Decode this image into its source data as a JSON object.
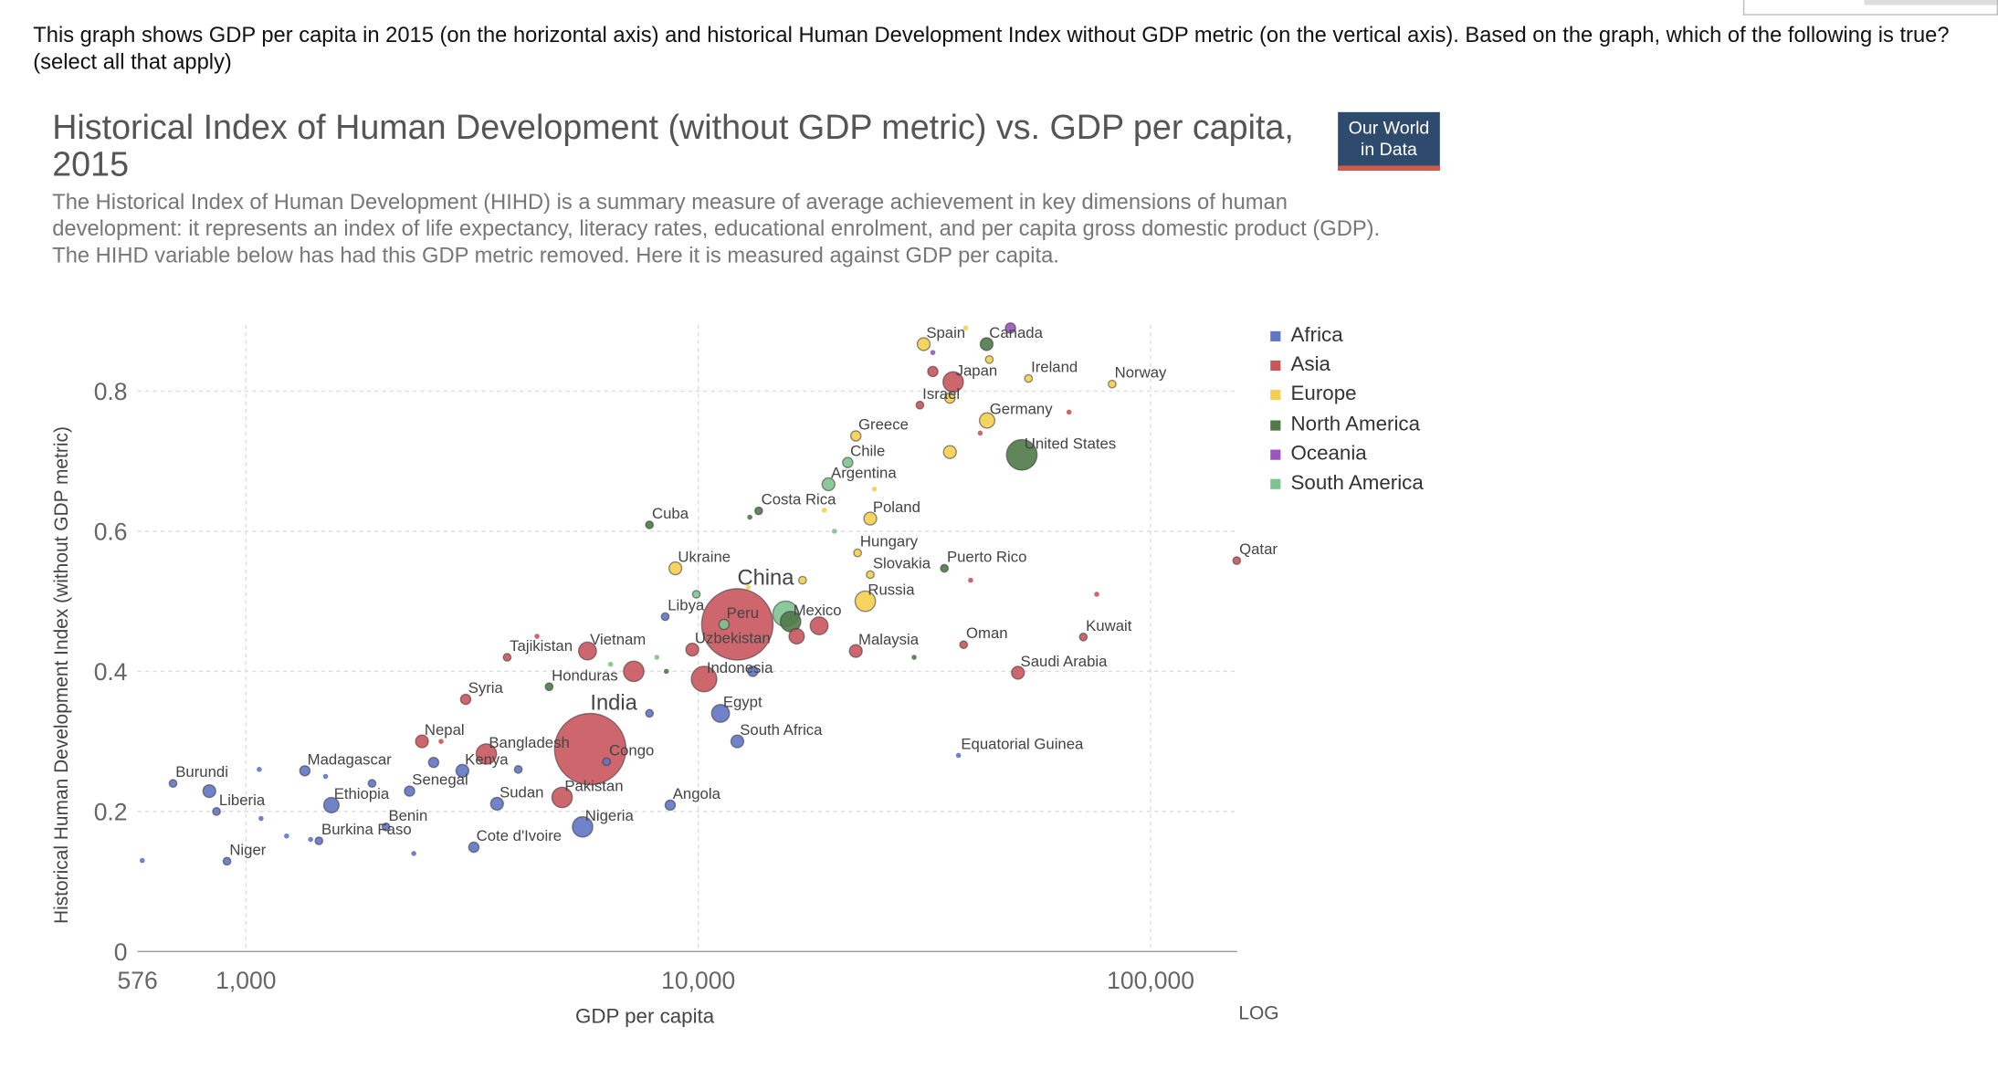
{
  "question": "This graph shows GDP per capita in 2015 (on the horizontal axis) and historical Human Development Index without GDP metric (on the vertical axis). Based on the graph, which of the following is true? (select all that apply)",
  "logo": {
    "line1": "Our World",
    "line2": "in Data"
  },
  "chart_data": {
    "type": "scatter",
    "title": "Historical Index of Human Development (without GDP metric) vs. GDP per capita, 2015",
    "subtitle": "The Historical Index of Human Development (HIHD) is a summary measure of average achievement in key dimensions of human development: it represents an index of life expectancy, literacy rates, educational enrolment, and per capita gross domestic product (GDP). The HIHD variable below has had this GDP metric removed. Here it is measured against GDP per capita.",
    "xlabel": "GDP per capita",
    "ylabel": "Historical Human Development Index (without GDP metric)",
    "x_scale": "log",
    "x_scale_label": "LOG",
    "xlim": [
      576,
      155000
    ],
    "ylim": [
      0,
      0.89
    ],
    "x_ticks": [
      {
        "value": 576,
        "label": "576"
      },
      {
        "value": 1000,
        "label": "1,000"
      },
      {
        "value": 10000,
        "label": "10,000"
      },
      {
        "value": 100000,
        "label": "100,000"
      }
    ],
    "y_ticks": [
      {
        "value": 0,
        "label": "0"
      },
      {
        "value": 0.2,
        "label": "0.2"
      },
      {
        "value": 0.4,
        "label": "0.4"
      },
      {
        "value": 0.6,
        "label": "0.6"
      },
      {
        "value": 0.8,
        "label": "0.8"
      }
    ],
    "grid": true,
    "legend_position": "right",
    "series": [
      {
        "name": "Africa",
        "color": "#6076c4"
      },
      {
        "name": "Asia",
        "color": "#c9565d"
      },
      {
        "name": "Europe",
        "color": "#f4cf4f"
      },
      {
        "name": "North America",
        "color": "#4f7a47"
      },
      {
        "name": "Oceania",
        "color": "#9a55bf"
      },
      {
        "name": "South America",
        "color": "#7dc48f"
      }
    ],
    "points": [
      {
        "label": "United States",
        "region": "North America",
        "gdp": 51900,
        "hihd": 0.709,
        "size": 12
      },
      {
        "label": "China",
        "region": "Asia",
        "gdp": 12200,
        "hihd": 0.467,
        "size": 28,
        "big_label": true
      },
      {
        "label": "India",
        "region": "Asia",
        "gdp": 5770,
        "hihd": 0.289,
        "size": 28,
        "big_label": true
      },
      {
        "label": "",
        "region": "South America",
        "gdp": 15600,
        "hihd": 0.482,
        "size": 10
      },
      {
        "label": "Spain",
        "region": "Europe",
        "gdp": 31500,
        "hihd": 0.867,
        "size": 5
      },
      {
        "label": "Canada",
        "region": "North America",
        "gdp": 43400,
        "hihd": 0.867,
        "size": 5
      },
      {
        "label": "Japan",
        "region": "Asia",
        "gdp": 36600,
        "hihd": 0.813,
        "size": 8
      },
      {
        "label": "Ireland",
        "region": "Europe",
        "gdp": 53700,
        "hihd": 0.818,
        "size": 3
      },
      {
        "label": "Norway",
        "region": "Europe",
        "gdp": 82200,
        "hihd": 0.81,
        "size": 3
      },
      {
        "label": "Israel",
        "region": "Asia",
        "gdp": 30900,
        "hihd": 0.78,
        "size": 3
      },
      {
        "label": "Germany",
        "region": "Europe",
        "gdp": 43500,
        "hihd": 0.758,
        "size": 6
      },
      {
        "label": "Greece",
        "region": "Europe",
        "gdp": 22300,
        "hihd": 0.736,
        "size": 4
      },
      {
        "label": "Chile",
        "region": "South America",
        "gdp": 21400,
        "hihd": 0.698,
        "size": 4
      },
      {
        "label": "Argentina",
        "region": "South America",
        "gdp": 19400,
        "hihd": 0.667,
        "size": 5
      },
      {
        "label": "Costa Rica",
        "region": "North America",
        "gdp": 13600,
        "hihd": 0.629,
        "size": 3
      },
      {
        "label": "Poland",
        "region": "Europe",
        "gdp": 24000,
        "hihd": 0.618,
        "size": 5
      },
      {
        "label": "Cuba",
        "region": "North America",
        "gdp": 7800,
        "hihd": 0.609,
        "size": 3
      },
      {
        "label": "Ukraine",
        "region": "Europe",
        "gdp": 8900,
        "hihd": 0.547,
        "size": 5
      },
      {
        "label": "Hungary",
        "region": "Europe",
        "gdp": 22500,
        "hihd": 0.569,
        "size": 3
      },
      {
        "label": "Slovakia",
        "region": "Europe",
        "gdp": 24000,
        "hihd": 0.538,
        "size": 3
      },
      {
        "label": "Puerto Rico",
        "region": "North America",
        "gdp": 35000,
        "hihd": 0.547,
        "size": 3
      },
      {
        "label": "Russia",
        "region": "Europe",
        "gdp": 23400,
        "hihd": 0.5,
        "size": 8
      },
      {
        "label": "Qatar",
        "region": "Asia",
        "gdp": 155000,
        "hihd": 0.558,
        "size": 3
      },
      {
        "label": "Peru",
        "region": "South America",
        "gdp": 11400,
        "hihd": 0.467,
        "size": 4
      },
      {
        "label": "Mexico",
        "region": "North America",
        "gdp": 16000,
        "hihd": 0.471,
        "size": 8
      },
      {
        "label": "Libya",
        "region": "Africa",
        "gdp": 8450,
        "hihd": 0.478,
        "size": 3
      },
      {
        "label": "Kuwait",
        "region": "Asia",
        "gdp": 71000,
        "hihd": 0.449,
        "size": 3
      },
      {
        "label": "Oman",
        "region": "Asia",
        "gdp": 38600,
        "hihd": 0.438,
        "size": 3
      },
      {
        "label": "Malaysia",
        "region": "Asia",
        "gdp": 22300,
        "hihd": 0.429,
        "size": 5
      },
      {
        "label": "Saudi Arabia",
        "region": "Asia",
        "gdp": 50900,
        "hihd": 0.398,
        "size": 5
      },
      {
        "label": "Uzbekistan",
        "region": "Asia",
        "gdp": 9700,
        "hihd": 0.431,
        "size": 5
      },
      {
        "label": "Indonesia",
        "region": "Asia",
        "gdp": 10300,
        "hihd": 0.389,
        "size": 10
      },
      {
        "label": "Vietnam",
        "region": "Asia",
        "gdp": 5690,
        "hihd": 0.429,
        "size": 7
      },
      {
        "label": "Tajikistan",
        "region": "Asia",
        "gdp": 3780,
        "hihd": 0.42,
        "size": 3
      },
      {
        "label": "Honduras",
        "region": "North America",
        "gdp": 4680,
        "hihd": 0.378,
        "size": 3
      },
      {
        "label": "Egypt",
        "region": "Africa",
        "gdp": 11200,
        "hihd": 0.34,
        "size": 7
      },
      {
        "label": "Syria",
        "region": "Asia",
        "gdp": 3060,
        "hihd": 0.36,
        "size": 4
      },
      {
        "label": "South Africa",
        "region": "Africa",
        "gdp": 12200,
        "hihd": 0.3,
        "size": 5
      },
      {
        "label": "Nepal",
        "region": "Asia",
        "gdp": 2450,
        "hihd": 0.3,
        "size": 5
      },
      {
        "label": "Bangladesh",
        "region": "Asia",
        "gdp": 3400,
        "hihd": 0.282,
        "size": 8
      },
      {
        "label": "Kenya",
        "region": "Africa",
        "gdp": 3010,
        "hihd": 0.258,
        "size": 5
      },
      {
        "label": "Congo",
        "region": "Africa",
        "gdp": 6270,
        "hihd": 0.271,
        "size": 3
      },
      {
        "label": "Madagascar",
        "region": "Africa",
        "gdp": 1350,
        "hihd": 0.258,
        "size": 4
      },
      {
        "label": "Burundi",
        "region": "Africa",
        "gdp": 690,
        "hihd": 0.24,
        "size": 3
      },
      {
        "label": "Liberia",
        "region": "Africa",
        "gdp": 861,
        "hihd": 0.2,
        "size": 3
      },
      {
        "label": "",
        "region": "Africa",
        "gdp": 830,
        "hihd": 0.229,
        "size": 5
      },
      {
        "label": "Ethiopia",
        "region": "Africa",
        "gdp": 1545,
        "hihd": 0.209,
        "size": 6
      },
      {
        "label": "Senegal",
        "region": "Africa",
        "gdp": 2300,
        "hihd": 0.229,
        "size": 4
      },
      {
        "label": "Sudan",
        "region": "Africa",
        "gdp": 3590,
        "hihd": 0.211,
        "size": 5
      },
      {
        "label": "Pakistan",
        "region": "Asia",
        "gdp": 5000,
        "hihd": 0.22,
        "size": 8
      },
      {
        "label": "Benin",
        "region": "Africa",
        "gdp": 2040,
        "hihd": 0.178,
        "size": 3
      },
      {
        "label": "Burkina Faso",
        "region": "Africa",
        "gdp": 1450,
        "hihd": 0.158,
        "size": 3
      },
      {
        "label": "Nigeria",
        "region": "Africa",
        "gdp": 5550,
        "hihd": 0.178,
        "size": 8
      },
      {
        "label": "Angola",
        "region": "Africa",
        "gdp": 8670,
        "hihd": 0.209,
        "size": 4
      },
      {
        "label": "Cote d'Ivoire",
        "region": "Africa",
        "gdp": 3190,
        "hihd": 0.149,
        "size": 4
      },
      {
        "label": "Niger",
        "region": "Africa",
        "gdp": 908,
        "hihd": 0.129,
        "size": 3
      },
      {
        "label": "Equatorial Guinea",
        "region": "Africa",
        "gdp": 37600,
        "hihd": 0.28,
        "size": 2
      },
      {
        "label": "",
        "region": "Africa",
        "gdp": 590,
        "hihd": 0.13,
        "size": 2
      },
      {
        "label": "",
        "region": "Africa",
        "gdp": 1070,
        "hihd": 0.26,
        "size": 2
      },
      {
        "label": "",
        "region": "Africa",
        "gdp": 1080,
        "hihd": 0.19,
        "size": 2
      },
      {
        "label": "",
        "region": "Africa",
        "gdp": 1390,
        "hihd": 0.16,
        "size": 2
      },
      {
        "label": "",
        "region": "Africa",
        "gdp": 1500,
        "hihd": 0.25,
        "size": 2
      },
      {
        "label": "",
        "region": "Africa",
        "gdp": 1900,
        "hihd": 0.24,
        "size": 3
      },
      {
        "label": "",
        "region": "Africa",
        "gdp": 2600,
        "hihd": 0.27,
        "size": 4
      },
      {
        "label": "",
        "region": "Africa",
        "gdp": 2350,
        "hihd": 0.14,
        "size": 2
      },
      {
        "label": "",
        "region": "Africa",
        "gdp": 4000,
        "hihd": 0.26,
        "size": 3
      },
      {
        "label": "",
        "region": "Africa",
        "gdp": 7800,
        "hihd": 0.34,
        "size": 3
      },
      {
        "label": "",
        "region": "Africa",
        "gdp": 13200,
        "hihd": 0.4,
        "size": 4
      },
      {
        "label": "",
        "region": "Africa",
        "gdp": 1230,
        "hihd": 0.165,
        "size": 2
      },
      {
        "label": "",
        "region": "Asia",
        "gdp": 4400,
        "hihd": 0.45,
        "size": 2
      },
      {
        "label": "",
        "region": "Asia",
        "gdp": 7200,
        "hihd": 0.4,
        "size": 8
      },
      {
        "label": "",
        "region": "Asia",
        "gdp": 16500,
        "hihd": 0.45,
        "size": 6
      },
      {
        "label": "",
        "region": "Asia",
        "gdp": 18500,
        "hihd": 0.465,
        "size": 7
      },
      {
        "label": "",
        "region": "Asia",
        "gdp": 42000,
        "hihd": 0.74,
        "size": 2
      },
      {
        "label": "",
        "region": "Asia",
        "gdp": 33000,
        "hihd": 0.828,
        "size": 4
      },
      {
        "label": "",
        "region": "Asia",
        "gdp": 66000,
        "hihd": 0.77,
        "size": 2
      },
      {
        "label": "",
        "region": "Asia",
        "gdp": 76000,
        "hihd": 0.51,
        "size": 2
      },
      {
        "label": "",
        "region": "Asia",
        "gdp": 40000,
        "hihd": 0.53,
        "size": 2
      },
      {
        "label": "",
        "region": "Asia",
        "gdp": 2700,
        "hihd": 0.3,
        "size": 2
      },
      {
        "label": "",
        "region": "Europe",
        "gdp": 36000,
        "hihd": 0.713,
        "size": 5
      },
      {
        "label": "",
        "region": "Europe",
        "gdp": 39000,
        "hihd": 0.89,
        "size": 2
      },
      {
        "label": "",
        "region": "Europe",
        "gdp": 44000,
        "hihd": 0.845,
        "size": 3
      },
      {
        "label": "",
        "region": "Europe",
        "gdp": 36000,
        "hihd": 0.79,
        "size": 4
      },
      {
        "label": "",
        "region": "Europe",
        "gdp": 19000,
        "hihd": 0.63,
        "size": 2
      },
      {
        "label": "",
        "region": "Europe",
        "gdp": 17000,
        "hihd": 0.53,
        "size": 3
      },
      {
        "label": "",
        "region": "Europe",
        "gdp": 24500,
        "hihd": 0.66,
        "size": 2
      },
      {
        "label": "",
        "region": "Europe",
        "gdp": 12900,
        "hihd": 0.52,
        "size": 2
      },
      {
        "label": "",
        "region": "North America",
        "gdp": 8500,
        "hihd": 0.4,
        "size": 2
      },
      {
        "label": "",
        "region": "North America",
        "gdp": 13000,
        "hihd": 0.62,
        "size": 2
      },
      {
        "label": "",
        "region": "North America",
        "gdp": 30000,
        "hihd": 0.42,
        "size": 2
      },
      {
        "label": "",
        "region": "South America",
        "gdp": 9900,
        "hihd": 0.51,
        "size": 3
      },
      {
        "label": "",
        "region": "South America",
        "gdp": 8100,
        "hihd": 0.42,
        "size": 2
      },
      {
        "label": "",
        "region": "South America",
        "gdp": 6400,
        "hihd": 0.41,
        "size": 2
      },
      {
        "label": "",
        "region": "South America",
        "gdp": 20000,
        "hihd": 0.6,
        "size": 2
      },
      {
        "label": "",
        "region": "Oceania",
        "gdp": 49000,
        "hihd": 0.89,
        "size": 4
      },
      {
        "label": "",
        "region": "Oceania",
        "gdp": 33000,
        "hihd": 0.855,
        "size": 2
      }
    ]
  }
}
